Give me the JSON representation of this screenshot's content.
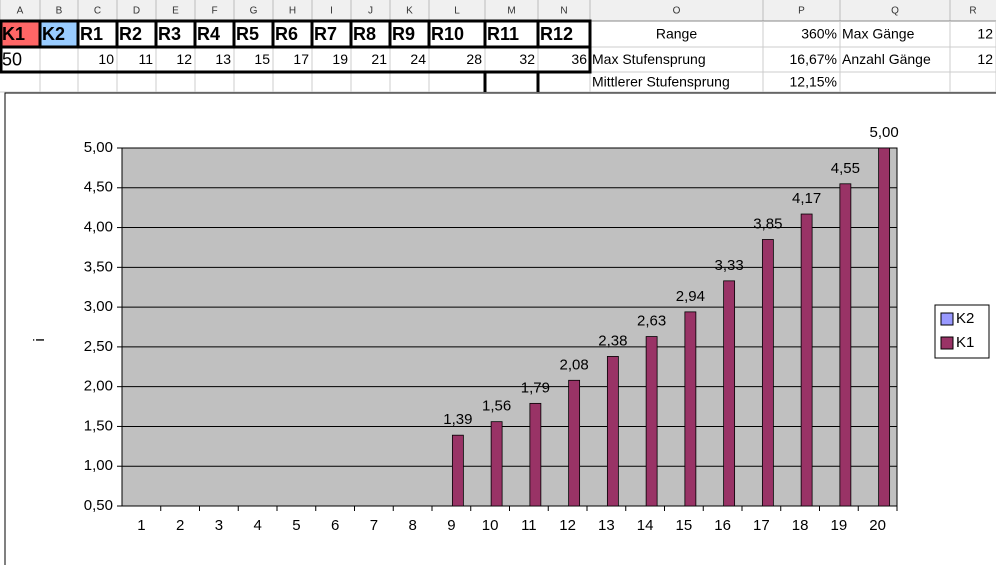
{
  "sheet": {
    "columns": [
      "A",
      "B",
      "C",
      "D",
      "E",
      "F",
      "G",
      "H",
      "I",
      "J",
      "K",
      "L",
      "M",
      "N",
      "O",
      "P",
      "Q",
      "R"
    ],
    "rows": [
      [
        "K1",
        "K2",
        "R1",
        "R2",
        "R3",
        "R4",
        "R5",
        "R6",
        "R7",
        "R8",
        "R9",
        "R10",
        "R11",
        "R12",
        "Range",
        "360%",
        "Max Gänge",
        "12"
      ],
      [
        "50",
        null,
        "10",
        "11",
        "12",
        "13",
        "15",
        "17",
        "19",
        "21",
        "24",
        "28",
        "32",
        "36",
        "Max Stufensprung",
        "16,67%",
        "Anzahl Gänge",
        "12"
      ],
      [
        null,
        null,
        null,
        null,
        null,
        null,
        null,
        null,
        null,
        null,
        null,
        null,
        null,
        null,
        "Mittlerer Stufensprung",
        "12,15%",
        null,
        null
      ]
    ]
  },
  "chart_data": {
    "type": "bar",
    "ylabel": "i",
    "categories": [
      1,
      2,
      3,
      4,
      5,
      6,
      7,
      8,
      9,
      10,
      11,
      12,
      13,
      14,
      15,
      16,
      17,
      18,
      19,
      20
    ],
    "series": [
      {
        "name": "K2",
        "color": "#9999ff",
        "values": [
          null,
          null,
          null,
          null,
          null,
          null,
          null,
          null,
          null,
          null,
          null,
          null,
          null,
          null,
          null,
          null,
          null,
          null,
          null,
          null
        ]
      },
      {
        "name": "K1",
        "color": "#993366",
        "values": [
          null,
          null,
          null,
          null,
          null,
          null,
          null,
          null,
          1.39,
          1.56,
          1.79,
          2.08,
          2.38,
          2.63,
          2.94,
          3.33,
          3.85,
          4.17,
          4.55,
          5.0
        ],
        "value_labels": [
          null,
          null,
          null,
          null,
          null,
          null,
          null,
          null,
          "1,39",
          "1,56",
          "1,79",
          "2,08",
          "2,38",
          "2,63",
          "2,94",
          "3,33",
          "3,85",
          "4,17",
          "4,55",
          "5,00"
        ]
      }
    ],
    "ylim": [
      0.5,
      5
    ],
    "yticks": [
      {
        "value": 0.5,
        "label": "0,50"
      },
      {
        "value": 1,
        "label": "1,00"
      },
      {
        "value": 1.5,
        "label": "1,50"
      },
      {
        "value": 2,
        "label": "2,00"
      },
      {
        "value": 2.5,
        "label": "2,50"
      },
      {
        "value": 3,
        "label": "3,00"
      },
      {
        "value": 3.5,
        "label": "3,50"
      },
      {
        "value": 4,
        "label": "4,00"
      },
      {
        "value": 4.5,
        "label": "4,50"
      },
      {
        "value": 5,
        "label": "5,00"
      }
    ],
    "grid": true,
    "legend": "right"
  }
}
